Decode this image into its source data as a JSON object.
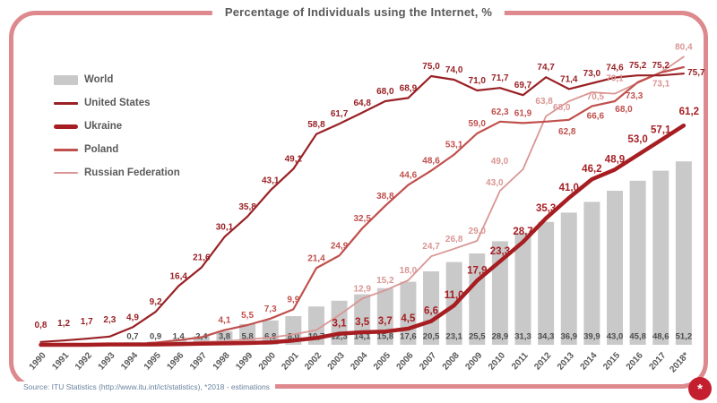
{
  "title": "Percentage of Individuals using the Internet, %",
  "source": "Source: ITU Statistics (http://www.itu.int/ict/statistics), *2018 - estimations",
  "badge_glyph": "*",
  "colors": {
    "frame": "#dd898d",
    "badge": "#c41f2f",
    "text": "#595959",
    "world_label": "#4d4d4d",
    "source_text": "#69829e"
  },
  "chart_data": {
    "type": "combo-bar-line",
    "title": "Percentage of Individuals using the Internet, %",
    "xlabel": "",
    "ylabel": "",
    "ylim": [
      0,
      85
    ],
    "grid": false,
    "legend_position": "upper-left",
    "categories": [
      "1990",
      "1991",
      "1992",
      "1993",
      "1994",
      "1995",
      "1996",
      "1997",
      "1998",
      "1999",
      "2000",
      "2001",
      "2002",
      "2003",
      "2004",
      "2005",
      "2006",
      "2007",
      "2008",
      "2009",
      "2010",
      "2011",
      "2012",
      "2013",
      "2014",
      "2015",
      "2016",
      "2017",
      "2018*"
    ],
    "series": [
      {
        "name": "World",
        "type": "bar",
        "color": "#c9c9c9",
        "label_color": "#4d4d4d",
        "values": [
          null,
          null,
          null,
          null,
          0.7,
          0.9,
          1.4,
          2.4,
          3.8,
          5.8,
          6.8,
          8.0,
          10.7,
          12.3,
          14.1,
          15.8,
          17.6,
          20.5,
          23.1,
          25.5,
          28.9,
          31.3,
          34.3,
          36.9,
          39.9,
          43.0,
          45.8,
          48.6,
          51.2
        ],
        "labels": [
          "",
          "",
          "",
          "",
          "0,7",
          "0,9",
          "1,4",
          "2,4",
          "3,8",
          "5,8",
          "6,8",
          "8,0",
          "10,7",
          "12,3",
          "14,1",
          "15,8",
          "17,6",
          "20,5",
          "23,1",
          "25,5",
          "28,9",
          "31,3",
          "34,3",
          "36,9",
          "39,9",
          "43,0",
          "45,8",
          "48,6",
          "51,2"
        ]
      },
      {
        "name": "United States",
        "type": "line",
        "color": "#992125",
        "label_color": "#992125",
        "values": [
          0.8,
          1.2,
          1.7,
          2.3,
          4.9,
          9.2,
          16.4,
          21.6,
          30.1,
          35.8,
          43.1,
          49.1,
          58.8,
          61.7,
          64.8,
          68.0,
          68.9,
          75.0,
          74.0,
          71.0,
          71.7,
          69.7,
          74.7,
          71.4,
          73.0,
          74.6,
          75.2,
          75.2,
          75.7
        ],
        "labels": [
          "0,8",
          "1,2",
          "1,7",
          "2,3",
          "4,9",
          "9,2",
          "16,4",
          "21,6",
          "30,1",
          "35,8",
          "43,1",
          "49,1",
          "58,8",
          "61,7",
          "64,8",
          "68,0",
          "68,9",
          "75,0",
          "74,0",
          "71,0",
          "71,7",
          "69,7",
          "74,7",
          "71,4",
          "73,0",
          "74,6",
          "75,2",
          "75,2",
          "75,7"
        ]
      },
      {
        "name": "Ukraine",
        "type": "line",
        "color": "#a61e22",
        "label_color": "#a61e22",
        "values": [
          0,
          0,
          0,
          0.1,
          0.1,
          0.1,
          0.2,
          0.3,
          0.4,
          0.5,
          0.7,
          1.2,
          1.9,
          3.1,
          3.5,
          3.7,
          4.5,
          6.6,
          11.0,
          17.9,
          23.3,
          28.7,
          35.3,
          41.0,
          46.2,
          48.9,
          53.0,
          57.1,
          61.2
        ],
        "labels": [
          "",
          "",
          "",
          "",
          "",
          "",
          "",
          "",
          "",
          "",
          "",
          "",
          "",
          "3,1",
          "3,5",
          "3,7",
          "4,5",
          "6,6",
          "11,0",
          "17,9",
          "23,3",
          "28,7",
          "35,3",
          "41,0",
          "46,2",
          "48,9",
          "53,0",
          "57,1",
          "61,2"
        ]
      },
      {
        "name": "Poland",
        "type": "line",
        "color": "#c0504d",
        "label_color": "#c0504d",
        "values": [
          null,
          null,
          null,
          null,
          0.1,
          0.6,
          1.3,
          2.1,
          4.1,
          5.5,
          7.3,
          9.9,
          21.4,
          24.9,
          32.5,
          38.8,
          44.6,
          48.6,
          53.1,
          59.0,
          62.3,
          61.9,
          62.3,
          62.8,
          66.6,
          68.0,
          73.3,
          76.0,
          77.5
        ],
        "labels": [
          "",
          "",
          "",
          "",
          "",
          "",
          "",
          "",
          "4,1",
          "5,5",
          "7,3",
          "9,9",
          "21,4",
          "24,9",
          "32,5",
          "38,8",
          "44,6",
          "48,6",
          "53,1",
          "59,0",
          "62,3",
          "61,9",
          "",
          "62,8",
          "66,6",
          "68,0",
          "73,3",
          "",
          ""
        ]
      },
      {
        "name": "Russian Federation",
        "type": "line",
        "color": "#d99694",
        "label_color": "#d99694",
        "values": [
          null,
          null,
          null,
          null,
          0.1,
          0.1,
          0.5,
          0.8,
          1.0,
          1.5,
          2.0,
          2.9,
          4.1,
          8.3,
          12.9,
          15.2,
          18.0,
          24.7,
          26.8,
          29.0,
          43.0,
          49.0,
          63.8,
          68.0,
          70.5,
          70.1,
          73.1,
          76.0,
          80.4
        ],
        "labels": [
          "",
          "",
          "",
          "",
          "",
          "",
          "",
          "",
          "",
          "",
          "",
          "",
          "",
          "",
          "12,9",
          "15,2",
          "18,0",
          "24,7",
          "26,8",
          "29,0",
          "43,0",
          "49,0",
          "63,8",
          "68,0",
          "70,5",
          "70,1",
          "73,1",
          "",
          "80,4"
        ]
      }
    ]
  }
}
